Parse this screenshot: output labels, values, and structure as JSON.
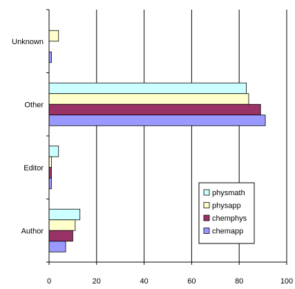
{
  "chart_data": {
    "type": "bar",
    "orientation": "horizontal",
    "title": "",
    "xlabel": "",
    "ylabel": "",
    "categories": [
      "Unknown",
      "Other",
      "Editor",
      "Author"
    ],
    "xlim": [
      0,
      100
    ],
    "x_ticks": [
      "0",
      "20",
      "40",
      "60",
      "80",
      "100"
    ],
    "grid": "vertical",
    "legend_position": "bottom-right",
    "series": [
      {
        "name": "physmath",
        "color": "#CCFFFF",
        "values": [
          0,
          83,
          4,
          13
        ]
      },
      {
        "name": "physapp",
        "color": "#FFFFCC",
        "values": [
          4,
          84,
          1,
          11
        ]
      },
      {
        "name": "chemphys",
        "color": "#993366",
        "values": [
          0,
          89,
          1,
          10
        ]
      },
      {
        "name": "chemapp",
        "color": "#9999FF",
        "values": [
          1,
          91,
          1,
          7
        ]
      }
    ]
  }
}
